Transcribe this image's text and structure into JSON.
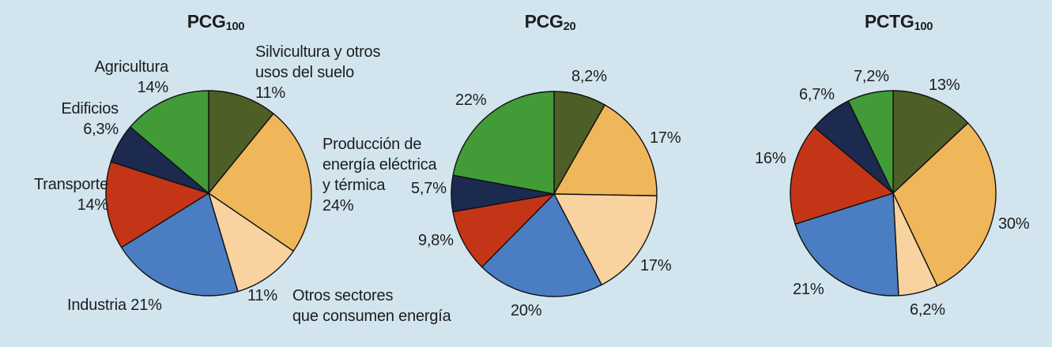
{
  "background_color": "#d2e5ee",
  "text_color": "#1c1d1f",
  "stroke_color": "#111111",
  "sector_colors": {
    "silvicultura": "#4e5e27",
    "produccion": "#f0b65a",
    "otros": "#f8d3a0",
    "industria": "#4b7dc2",
    "transporte": "#c43518",
    "edificios": "#1b2a4e",
    "agricultura": "#419c38"
  },
  "charts": [
    {
      "title_base": "PCG",
      "title_sub": "100",
      "annotations": {
        "silvicultura": [
          "Silvicultura y otros",
          "usos del suelo",
          "11%"
        ],
        "agricultura": [
          "Agricultura",
          "14%"
        ],
        "edificios": [
          "Edificios",
          "6,3%"
        ],
        "produccion": [
          "Producción de",
          "energía eléctrica",
          "y térmica",
          "24%"
        ],
        "transporte": [
          "Transporte",
          "14%"
        ],
        "industria": [
          "Industria 21%"
        ],
        "otros_value": [
          "11%"
        ],
        "otros_name": [
          "Otros sectores",
          "que consumen energía"
        ]
      }
    },
    {
      "title_base": "PCG",
      "title_sub": "20",
      "annotations": {
        "silvicultura": "8,2%",
        "produccion": "17%",
        "otros": "17%",
        "industria": "20%",
        "transporte": "9,8%",
        "edificios": "5,7%",
        "agricultura": "22%"
      }
    },
    {
      "title_base": "PCTG",
      "title_sub": "100",
      "annotations": {
        "silvicultura": "13%",
        "produccion": "30%",
        "otros": "6,2%",
        "industria": "21%",
        "transporte": "16%",
        "edificios": "6,7%",
        "agricultura": "7,2%"
      }
    }
  ],
  "chart_data": [
    {
      "type": "pie",
      "title": "PCG100",
      "start_angle_deg": 0,
      "direction": "clockwise",
      "slice_names": [
        "silvicultura",
        "produccion",
        "otros",
        "industria",
        "transporte",
        "edificios",
        "agricultura"
      ],
      "categories": [
        "Silvicultura y otros usos del suelo",
        "Producción de energía eléctrica y térmica",
        "Otros sectores que consumen energía",
        "Industria",
        "Transporte",
        "Edificios",
        "Agricultura"
      ],
      "values": [
        11,
        24,
        11,
        21,
        14,
        6.3,
        14
      ],
      "value_labels": [
        "11%",
        "24%",
        "11%",
        "21%",
        "14%",
        "6,3%",
        "14%"
      ],
      "colors": [
        "#4e5e27",
        "#f0b65a",
        "#f8d3a0",
        "#4b7dc2",
        "#c43518",
        "#1b2a4e",
        "#419c38"
      ]
    },
    {
      "type": "pie",
      "title": "PCG20",
      "start_angle_deg": 0,
      "direction": "clockwise",
      "slice_names": [
        "silvicultura",
        "produccion",
        "otros",
        "industria",
        "transporte",
        "edificios",
        "agricultura"
      ],
      "categories": [
        "Silvicultura y otros usos del suelo",
        "Producción de energía eléctrica y térmica",
        "Otros sectores que consumen energía",
        "Industria",
        "Transporte",
        "Edificios",
        "Agricultura"
      ],
      "values": [
        8.2,
        17,
        17,
        20,
        9.8,
        5.7,
        22
      ],
      "value_labels": [
        "8,2%",
        "17%",
        "17%",
        "20%",
        "9,8%",
        "5,7%",
        "22%"
      ],
      "colors": [
        "#4e5e27",
        "#f0b65a",
        "#f8d3a0",
        "#4b7dc2",
        "#c43518",
        "#1b2a4e",
        "#419c38"
      ]
    },
    {
      "type": "pie",
      "title": "PCTG100",
      "start_angle_deg": 0,
      "direction": "clockwise",
      "slice_names": [
        "silvicultura",
        "produccion",
        "otros",
        "industria",
        "transporte",
        "edificios",
        "agricultura"
      ],
      "categories": [
        "Silvicultura y otros usos del suelo",
        "Producción de energía eléctrica y térmica",
        "Otros sectores que consumen energía",
        "Industria",
        "Transporte",
        "Edificios",
        "Agricultura"
      ],
      "values": [
        13,
        30,
        6.2,
        21,
        16,
        6.7,
        7.2
      ],
      "value_labels": [
        "13%",
        "30%",
        "6,2%",
        "21%",
        "16%",
        "6,7%",
        "7,2%"
      ],
      "colors": [
        "#4e5e27",
        "#f0b65a",
        "#f8d3a0",
        "#4b7dc2",
        "#c43518",
        "#1b2a4e",
        "#419c38"
      ]
    }
  ]
}
